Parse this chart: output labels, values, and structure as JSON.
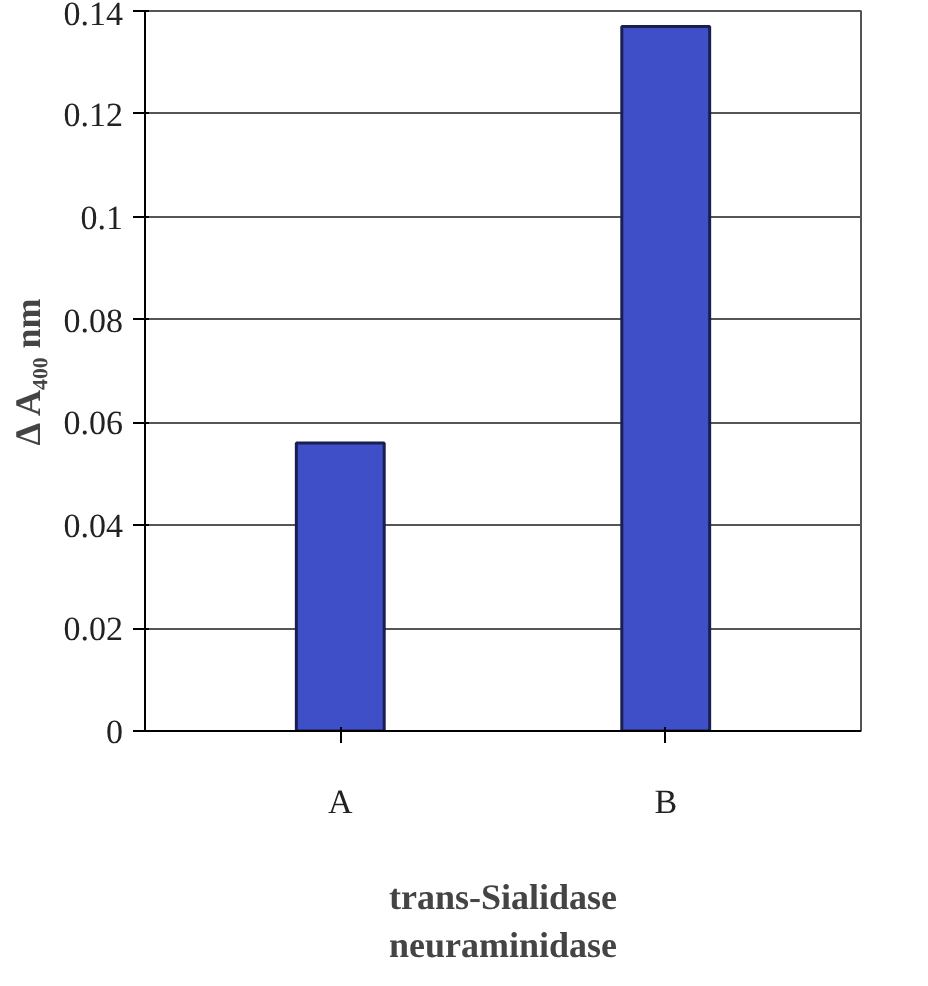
{
  "chart_data": {
    "type": "bar",
    "categories": [
      "A",
      "B"
    ],
    "values": [
      0.056,
      0.137
    ],
    "color": "#3f4fc8",
    "ylim": [
      0,
      0.14
    ],
    "yticks": [
      {
        "value": 0,
        "label": "0"
      },
      0.02,
      0.04,
      0.06,
      0.08,
      {
        "value": 0.1,
        "label": "0.1"
      },
      0.12,
      0.14
    ],
    "ylabel": "Δ A₄₀₀ nm",
    "xlabel": "trans-Sialidase\nneuraminidase",
    "grid": "y"
  }
}
